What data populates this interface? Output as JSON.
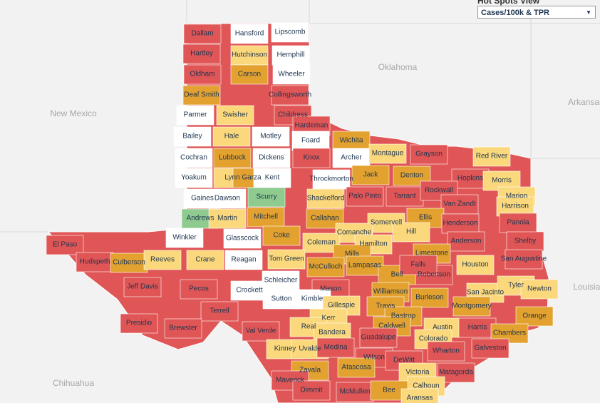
{
  "header": {
    "title": "Hot Spots View",
    "dropdown": "Cases/100k & TPR"
  },
  "map_labels": [
    "Oklahoma",
    "New Mexico",
    "Arkansas",
    "Louisiana",
    "Chihuahua"
  ],
  "counties": [
    {
      "name": "Dallam",
      "color": "#e05555"
    },
    {
      "name": "Hansford",
      "color": "#ffffff"
    },
    {
      "name": "Lipscomb",
      "color": "#ffffff"
    },
    {
      "name": "Hartley",
      "color": "#e05555"
    },
    {
      "name": "Hutchinson",
      "color": "#fbd87c"
    },
    {
      "name": "Hemphill",
      "color": "#ffffff"
    },
    {
      "name": "Oldham",
      "color": "#e05555"
    },
    {
      "name": "Carson",
      "color": "#e3a230"
    },
    {
      "name": "Wheeler",
      "color": "#ffffff"
    },
    {
      "name": "Deaf Smith",
      "color": "#e3a230"
    },
    {
      "name": "Collingsworth",
      "color": "#e05555"
    },
    {
      "name": "Parmer",
      "color": "#ffffff"
    },
    {
      "name": "Swisher",
      "color": "#fbd87c"
    },
    {
      "name": "Childress",
      "color": "#e05555"
    },
    {
      "name": "Hardeman",
      "color": "#e05555"
    },
    {
      "name": "Bailey",
      "color": "#ffffff"
    },
    {
      "name": "Hale",
      "color": "#fbd87c"
    },
    {
      "name": "Motley",
      "color": "#ffffff"
    },
    {
      "name": "Foard",
      "color": "#ffffff"
    },
    {
      "name": "Wichita",
      "color": "#e3a230"
    },
    {
      "name": "Cochran",
      "color": "#ffffff"
    },
    {
      "name": "Lubbock",
      "color": "#e3a230"
    },
    {
      "name": "Dickens",
      "color": "#ffffff"
    },
    {
      "name": "Knox",
      "color": "#e05555"
    },
    {
      "name": "Archer",
      "color": "#ffffff"
    },
    {
      "name": "Montague",
      "color": "#fbd87c"
    },
    {
      "name": "Grayson",
      "color": "#e05555"
    },
    {
      "name": "Red River",
      "color": "#fbd87c"
    },
    {
      "name": "Yoakum",
      "color": "#ffffff"
    },
    {
      "name": "Lynn",
      "color": "#fbd87c"
    },
    {
      "name": "Garza",
      "color": "#e3a230"
    },
    {
      "name": "Kent",
      "color": "#ffffff"
    },
    {
      "name": "Throckmorton",
      "color": "#ffffff"
    },
    {
      "name": "Jack",
      "color": "#e3a230"
    },
    {
      "name": "Denton",
      "color": "#e3a230"
    },
    {
      "name": "Hopkins",
      "color": "#e05555"
    },
    {
      "name": "Morris",
      "color": "#fbd87c"
    },
    {
      "name": "Gaines",
      "color": "#ffffff"
    },
    {
      "name": "Dawson",
      "color": "#ffffff"
    },
    {
      "name": "Scurry",
      "color": "#8fca8f"
    },
    {
      "name": "Shackelford",
      "color": "#fbd87c"
    },
    {
      "name": "Palo Pinto",
      "color": "#e05555"
    },
    {
      "name": "Tarrant",
      "color": "#e05555"
    },
    {
      "name": "Rockwall",
      "color": "#e05555"
    },
    {
      "name": "Marion",
      "color": "#fbd87c"
    },
    {
      "name": "Harrison",
      "color": "#fbd87c"
    },
    {
      "name": "Van Zandt",
      "color": "#e05555"
    },
    {
      "name": "Andrews",
      "color": "#8fca8f"
    },
    {
      "name": "Martin",
      "color": "#fbd87c"
    },
    {
      "name": "Mitchell",
      "color": "#e3a230"
    },
    {
      "name": "Callahan",
      "color": "#e3a230"
    },
    {
      "name": "Ellis",
      "color": "#e3a230"
    },
    {
      "name": "Panola",
      "color": "#e05555"
    },
    {
      "name": "Somervell",
      "color": "#fbd87c"
    },
    {
      "name": "Henderson",
      "color": "#e05555"
    },
    {
      "name": "Winkler",
      "color": "#ffffff"
    },
    {
      "name": "Glasscock",
      "color": "#ffffff"
    },
    {
      "name": "Coke",
      "color": "#e3a230"
    },
    {
      "name": "Comanche",
      "color": "#fbd87c"
    },
    {
      "name": "Hill",
      "color": "#fbd87c"
    },
    {
      "name": "Shelby",
      "color": "#e05555"
    },
    {
      "name": "El Paso",
      "color": "#e05555"
    },
    {
      "name": "Coleman",
      "color": "#fbd87c"
    },
    {
      "name": "Hamilton",
      "color": "#fbd87c"
    },
    {
      "name": "Anderson",
      "color": "#e05555"
    },
    {
      "name": "Limestone",
      "color": "#e3a230"
    },
    {
      "name": "Hudspeth",
      "color": "#e05555"
    },
    {
      "name": "Culberson",
      "color": "#e3a230"
    },
    {
      "name": "Reeves",
      "color": "#fbd87c"
    },
    {
      "name": "Crane",
      "color": "#fbd87c"
    },
    {
      "name": "Reagan",
      "color": "#ffffff"
    },
    {
      "name": "Tom Green",
      "color": "#fbd87c"
    },
    {
      "name": "Mills",
      "color": "#e3a230"
    },
    {
      "name": "McCulloch",
      "color": "#e3a230"
    },
    {
      "name": "Lampasas",
      "color": "#e3a230"
    },
    {
      "name": "Houston",
      "color": "#fbd87c"
    },
    {
      "name": "San Augustine",
      "color": "#e05555"
    },
    {
      "name": "Robertson",
      "color": "#e05555"
    },
    {
      "name": "Bell",
      "color": "#e3a230"
    },
    {
      "name": "Jeff Davis",
      "color": "#e05555"
    },
    {
      "name": "Pecos",
      "color": "#e05555"
    },
    {
      "name": "Schleicher",
      "color": "#ffffff"
    },
    {
      "name": "Crockett",
      "color": "#ffffff"
    },
    {
      "name": "Mason",
      "color": "#e05555"
    },
    {
      "name": "Falls",
      "color": "#e05555"
    },
    {
      "name": "Williamson",
      "color": "#e3a230"
    },
    {
      "name": "San Jacinto",
      "color": "#fbd87c"
    },
    {
      "name": "Tyler",
      "color": "#fbd87c"
    },
    {
      "name": "Newton",
      "color": "#fbd87c"
    },
    {
      "name": "Sutton",
      "color": "#ffffff"
    },
    {
      "name": "Kimble",
      "color": "#ffffff"
    },
    {
      "name": "Burleson",
      "color": "#e3a230"
    },
    {
      "name": "Montgomery",
      "color": "#e3a230"
    },
    {
      "name": "Terrell",
      "color": "#e05555"
    },
    {
      "name": "Travis",
      "color": "#e3a230"
    },
    {
      "name": "Gillespie",
      "color": "#fbd87c"
    },
    {
      "name": "Bastrop",
      "color": "#e3a230"
    },
    {
      "name": "Orange",
      "color": "#e3a230"
    },
    {
      "name": "Presidio",
      "color": "#e05555"
    },
    {
      "name": "Brewster",
      "color": "#e05555"
    },
    {
      "name": "Val Verde",
      "color": "#e05555"
    },
    {
      "name": "Kerr",
      "color": "#fbd87c"
    },
    {
      "name": "Real",
      "color": "#fbd87c"
    },
    {
      "name": "Bandera",
      "color": "#fbd87c"
    },
    {
      "name": "Caldwell",
      "color": "#e3a230"
    },
    {
      "name": "Austin",
      "color": "#fbd87c"
    },
    {
      "name": "Harris",
      "color": "#e05555"
    },
    {
      "name": "Chambers",
      "color": "#e3a230"
    },
    {
      "name": "Guadalupe",
      "color": "#e05555"
    },
    {
      "name": "Colorado",
      "color": "#fbd87c"
    },
    {
      "name": "Kinney",
      "color": "#fbd87c"
    },
    {
      "name": "Uvalde",
      "color": "#fbd87c"
    },
    {
      "name": "Medina",
      "color": "#e05555"
    },
    {
      "name": "Galveston",
      "color": "#e05555"
    },
    {
      "name": "Wharton",
      "color": "#e05555"
    },
    {
      "name": "Wilson",
      "color": "#e05555"
    },
    {
      "name": "DeWitt",
      "color": "#e05555"
    },
    {
      "name": "Atascosa",
      "color": "#e3a230"
    },
    {
      "name": "Victoria",
      "color": "#fbd87c"
    },
    {
      "name": "Matagorda",
      "color": "#e05555"
    },
    {
      "name": "Zavala",
      "color": "#e3a230"
    },
    {
      "name": "Maverick",
      "color": "#e05555"
    },
    {
      "name": "Calhoun",
      "color": "#fbd87c"
    },
    {
      "name": "Dimmit",
      "color": "#e05555"
    },
    {
      "name": "McMullen",
      "color": "#e05555"
    },
    {
      "name": "Bee",
      "color": "#e3a230"
    },
    {
      "name": "Aransas",
      "color": "#fbd87c"
    }
  ]
}
